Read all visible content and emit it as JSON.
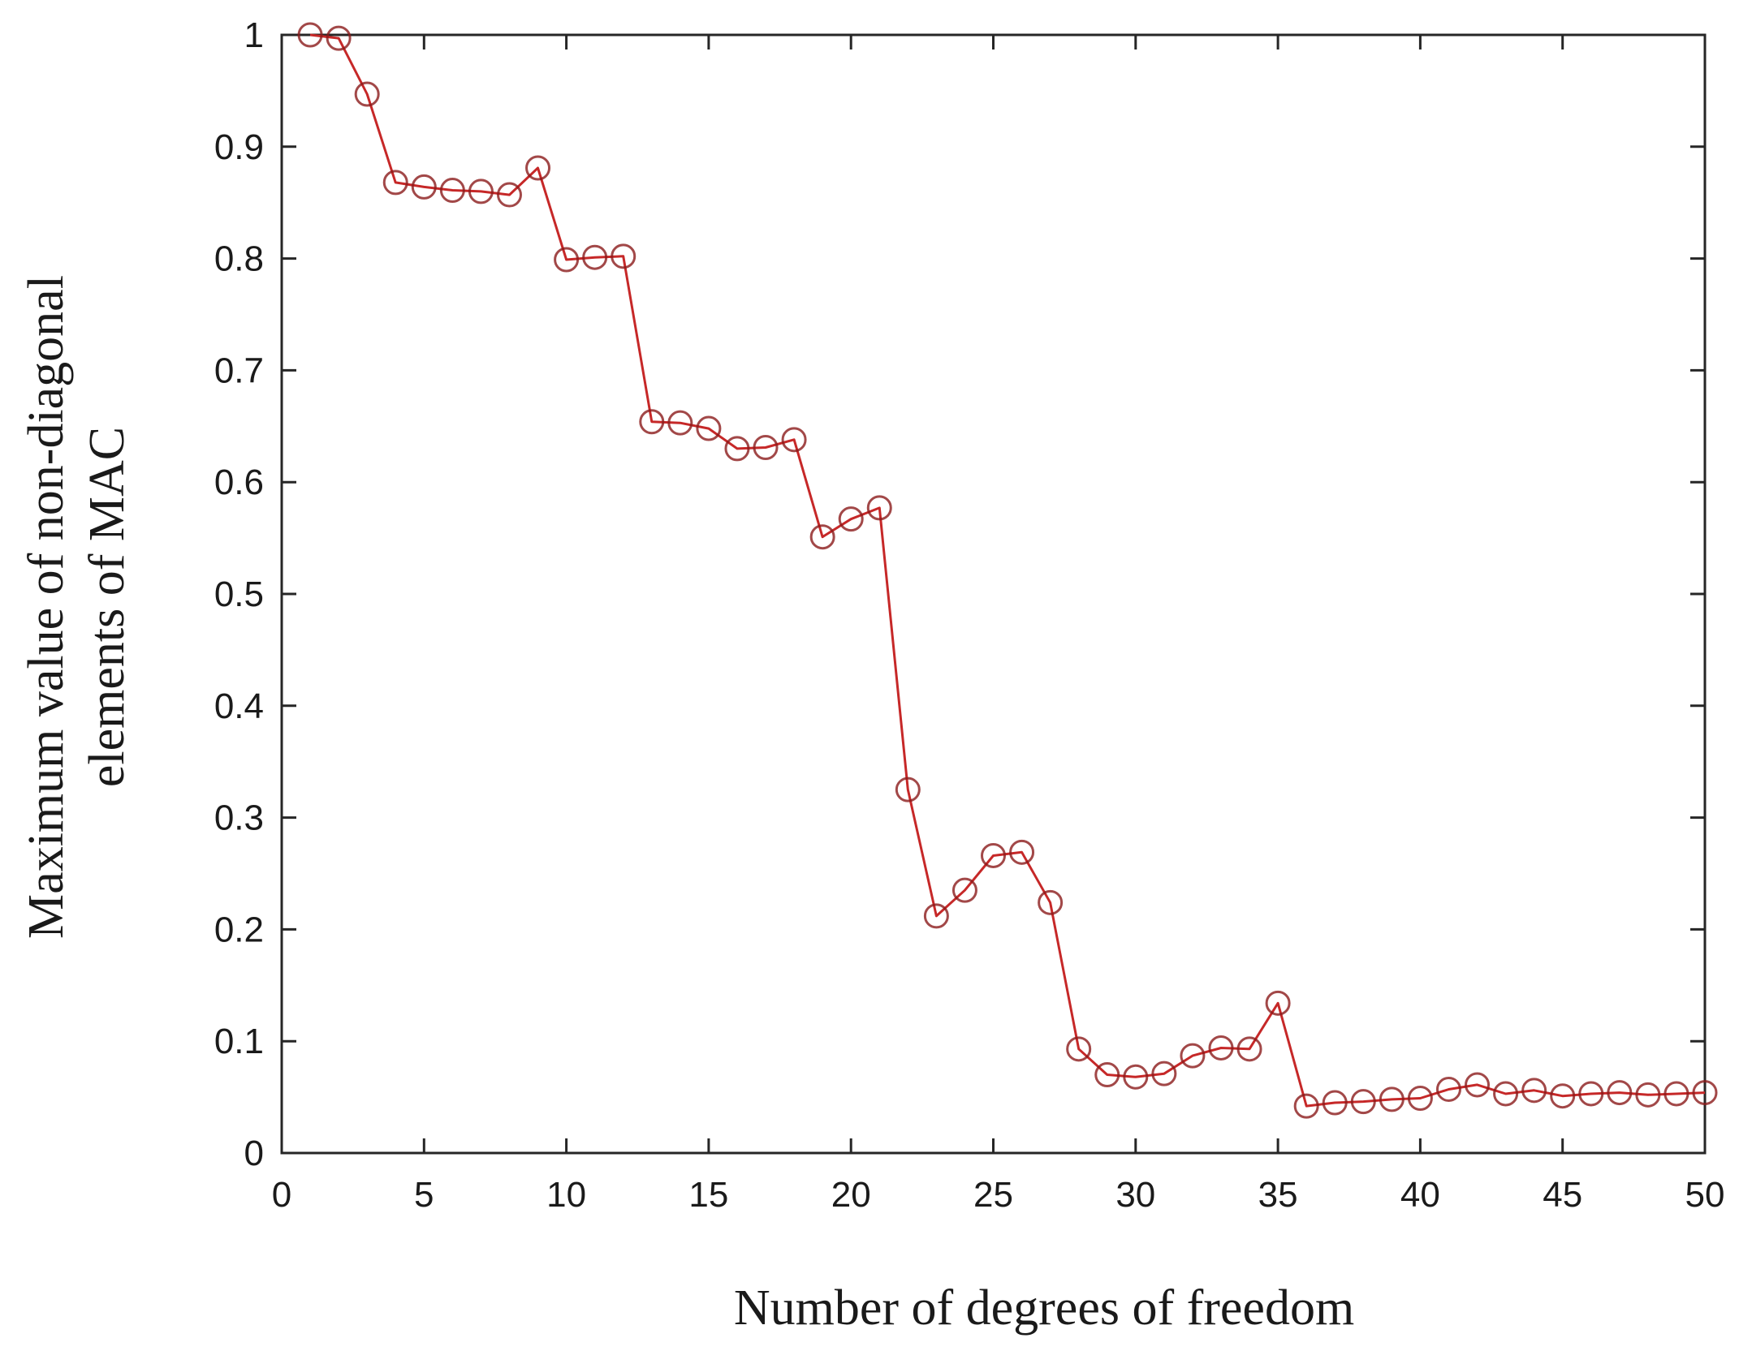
{
  "chart_data": {
    "type": "line",
    "title": "",
    "xlabel": "Number of degrees of freedom",
    "ylabel_lines": [
      "Maximum value of non-diagonal",
      "elements of MAC"
    ],
    "xlim": [
      0,
      50
    ],
    "ylim": [
      0,
      1
    ],
    "xticks": [
      0,
      5,
      10,
      15,
      20,
      25,
      30,
      35,
      40,
      45,
      50
    ],
    "yticks": [
      0,
      0.1,
      0.2,
      0.3,
      0.4,
      0.5,
      0.6,
      0.7,
      0.8,
      0.9,
      1
    ],
    "grid": false,
    "marker": "circle",
    "line_color": "#c62828",
    "marker_color": "#8b1a1a",
    "x": [
      1,
      2,
      3,
      4,
      5,
      6,
      7,
      8,
      9,
      10,
      11,
      12,
      13,
      14,
      15,
      16,
      17,
      18,
      19,
      20,
      21,
      22,
      23,
      24,
      25,
      26,
      27,
      28,
      29,
      30,
      31,
      32,
      33,
      34,
      35,
      36,
      37,
      38,
      39,
      40,
      41,
      42,
      43,
      44,
      45,
      46,
      47,
      48,
      49,
      50
    ],
    "series": [
      {
        "values": [
          1.0,
          0.997,
          0.947,
          0.868,
          0.864,
          0.861,
          0.86,
          0.857,
          0.881,
          0.799,
          0.801,
          0.802,
          0.654,
          0.653,
          0.648,
          0.63,
          0.631,
          0.638,
          0.551,
          0.567,
          0.577,
          0.325,
          0.212,
          0.235,
          0.266,
          0.269,
          0.224,
          0.093,
          0.07,
          0.068,
          0.071,
          0.087,
          0.094,
          0.093,
          0.134,
          0.042,
          0.045,
          0.046,
          0.048,
          0.049,
          0.057,
          0.061,
          0.053,
          0.056,
          0.051,
          0.053,
          0.054,
          0.052,
          0.053,
          0.054
        ]
      }
    ]
  }
}
